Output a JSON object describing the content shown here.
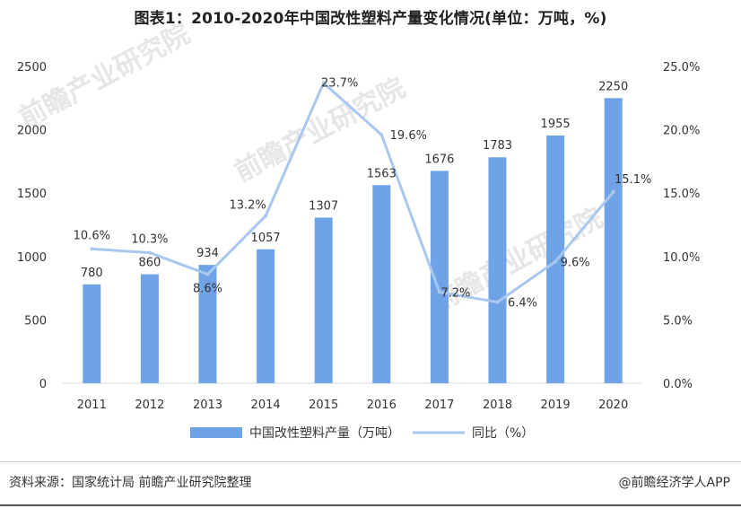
{
  "title": "图表1：2010-2020年中国改性塑料产量变化情况(单位：万吨，%)",
  "source": "资料来源：国家统计局 前瞻产业研究院整理",
  "credit": "@前瞻经济学人APP",
  "watermark": "前瞻产业研究院",
  "colors": {
    "bar": "#6fa3e7",
    "line": "#a8c8f0",
    "text": "#333333",
    "axis": "#d9d9d9"
  },
  "chart_data": {
    "type": "bar+line",
    "title": "图表1：2010-2020年中国改性塑料产量变化情况(单位：万吨，%)",
    "categories": [
      "2011",
      "2012",
      "2013",
      "2014",
      "2015",
      "2016",
      "2017",
      "2018",
      "2019",
      "2020"
    ],
    "series": [
      {
        "name": "中国改性塑料产量（万吨）",
        "type": "bar",
        "axis": "left",
        "values": [
          780,
          860,
          934,
          1057,
          1307,
          1563,
          1676,
          1783,
          1955,
          2250
        ],
        "labels": [
          "780",
          "860",
          "934",
          "1057",
          "1307",
          "1563",
          "1676",
          "1783",
          "1955",
          "2250"
        ]
      },
      {
        "name": "同比（%）",
        "type": "line",
        "axis": "right",
        "values": [
          10.6,
          10.3,
          8.6,
          13.2,
          23.7,
          19.6,
          7.2,
          6.4,
          9.6,
          15.1
        ],
        "labels": [
          "10.6%",
          "10.3%",
          "8.6%",
          "13.2%",
          "23.7%",
          "19.6%",
          "7.2%",
          "6.4%",
          "9.6%",
          "15.1%"
        ]
      }
    ],
    "y_left": {
      "min": 0,
      "max": 2500,
      "ticks": [
        "0",
        "500",
        "1000",
        "1500",
        "2000",
        "2500"
      ]
    },
    "y_right": {
      "min": 0,
      "max": 25,
      "ticks": [
        "0.0%",
        "5.0%",
        "10.0%",
        "15.0%",
        "20.0%",
        "25.0%"
      ]
    },
    "legend": [
      "中国改性塑料产量（万吨）",
      "同比（%）"
    ],
    "legend_position": "bottom"
  }
}
